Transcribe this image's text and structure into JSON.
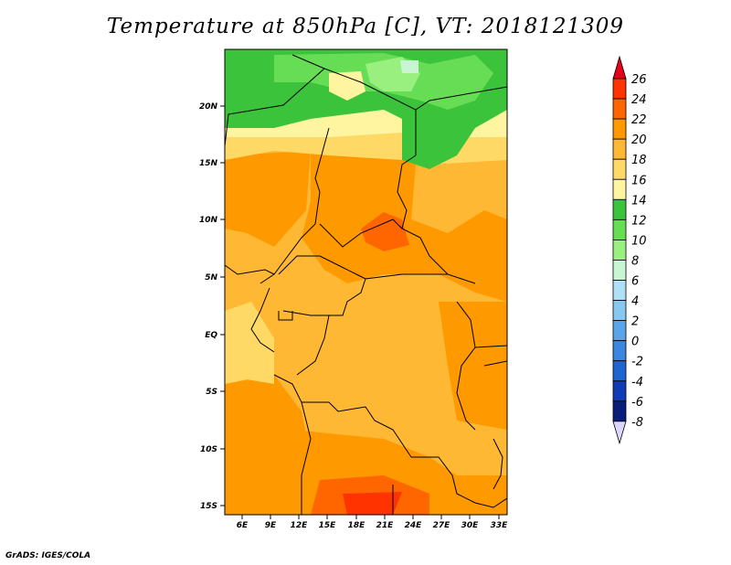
{
  "title": "Temperature at 850hPa [C], VT: 2018121309",
  "footer": "GrADS: IGES/COLA",
  "map": {
    "lat_ticks": [
      "20N",
      "15N",
      "10N",
      "5N",
      "EQ",
      "5S",
      "10S",
      "15S"
    ],
    "lon_ticks": [
      "6E",
      "9E",
      "12E",
      "15E",
      "18E",
      "21E",
      "24E",
      "27E",
      "30E",
      "33E"
    ]
  },
  "colorbar": {
    "labels": [
      "26",
      "24",
      "22",
      "20",
      "18",
      "16",
      "14",
      "12",
      "10",
      "8",
      "6",
      "4",
      "2",
      "0",
      "-2",
      "-4",
      "-6",
      "-8"
    ],
    "colors": [
      "#e6001a",
      "#ff3300",
      "#ff6600",
      "#ff9900",
      "#ffb833",
      "#ffd966",
      "#fff5a0",
      "#3cc33c",
      "#66dd55",
      "#99f07f",
      "#c8f5d2",
      "#b0e0f5",
      "#88c8f0",
      "#5aa5ea",
      "#3a87e0",
      "#1e64d2",
      "#0f3cb4",
      "#081e7a",
      "#dcd7fa"
    ]
  }
}
